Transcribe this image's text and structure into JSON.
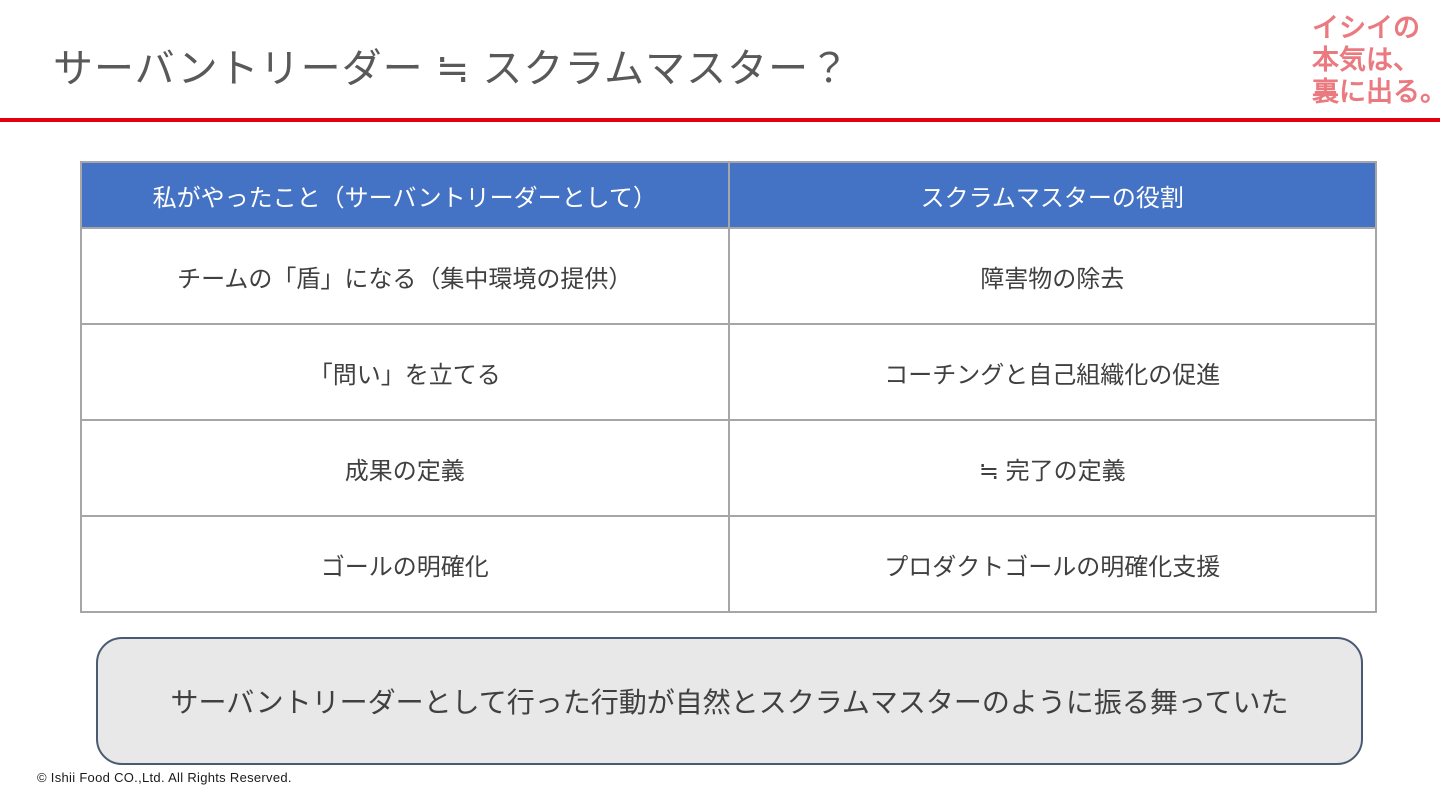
{
  "title": "サーバントリーダー ≒ スクラムマスター？",
  "logo": {
    "line1": "イシイの",
    "line2": "本気は、",
    "line3": "裏に出る。"
  },
  "table": {
    "headers": [
      "私がやったこと（サーバントリーダーとして）",
      "スクラムマスターの役割"
    ],
    "rows": [
      [
        "チームの「盾」になる（集中環境の提供）",
        "障害物の除去"
      ],
      [
        "「問い」を立てる",
        "コーチングと自己組織化の促進"
      ],
      [
        "成果の定義",
        "≒ 完了の定義"
      ],
      [
        "ゴールの明確化",
        "プロダクトゴールの明確化支援"
      ]
    ]
  },
  "summary": "サーバントリーダーとして行った行動が自然とスクラムマスターのように振る舞っていた",
  "footer": "© Ishii Food CO.,Ltd. All Rights Reserved.",
  "colors": {
    "accent_red": "#e3000f",
    "logo_red": "#ea7a80",
    "header_blue": "#4472c4",
    "header_text": "#ffffff",
    "body_text": "#404040",
    "title_text": "#595959",
    "table_border": "#a6a6a6",
    "box_border": "#4a5a73",
    "box_background": "#e8e8e8"
  }
}
